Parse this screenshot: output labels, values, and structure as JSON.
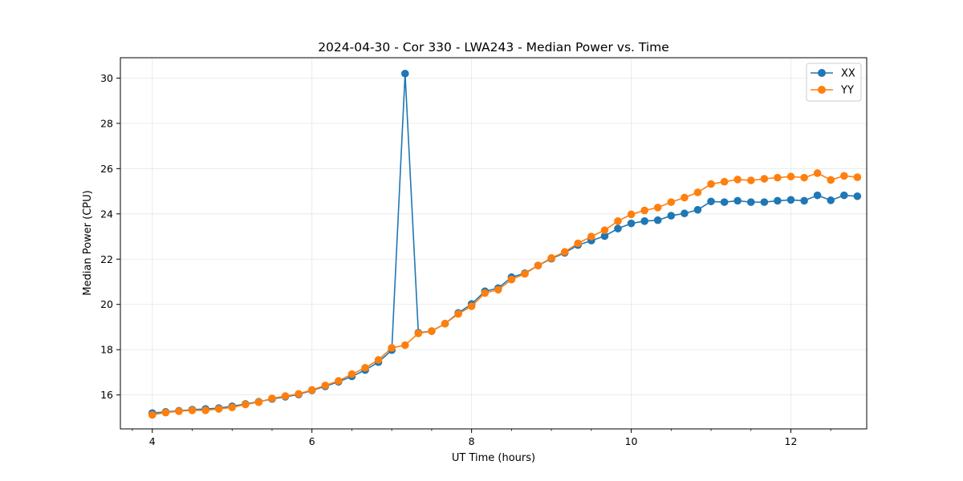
{
  "chart_data": {
    "type": "line",
    "title": "2024-04-30 - Cor 330 - LWA243 - Median Power vs. Time",
    "xlabel": "UT Time (hours)",
    "ylabel": "Median Power (CPU)",
    "xlim": [
      3.6,
      12.95
    ],
    "ylim": [
      14.5,
      30.9
    ],
    "xticks": [
      4,
      6,
      8,
      10,
      12
    ],
    "xtick_labels": [
      "4",
      "6",
      "8",
      "10",
      "12"
    ],
    "xminor": [
      3.75,
      4.5,
      5.0,
      5.5,
      6.5,
      7.0,
      7.5,
      8.5,
      9.0,
      9.5,
      10.5,
      11.0,
      11.5,
      12.5
    ],
    "yticks": [
      16,
      18,
      20,
      22,
      24,
      26,
      28,
      30
    ],
    "ytick_labels": [
      "16",
      "18",
      "20",
      "22",
      "24",
      "26",
      "28",
      "30"
    ],
    "grid": true,
    "legend_position": "top-right",
    "x": [
      4.0,
      4.167,
      4.333,
      4.5,
      4.667,
      4.833,
      5.0,
      5.167,
      5.333,
      5.5,
      5.667,
      5.833,
      6.0,
      6.167,
      6.333,
      6.5,
      6.667,
      6.833,
      7.0,
      7.167,
      7.333,
      7.5,
      7.667,
      7.833,
      8.0,
      8.167,
      8.333,
      8.5,
      8.667,
      8.833,
      9.0,
      9.167,
      9.333,
      9.5,
      9.667,
      9.833,
      10.0,
      10.167,
      10.333,
      10.5,
      10.667,
      10.833,
      11.0,
      11.167,
      11.333,
      11.5,
      11.667,
      11.833,
      12.0,
      12.167,
      12.333,
      12.5,
      12.667,
      12.833
    ],
    "series": [
      {
        "name": "XX",
        "color": "#1f77b4",
        "values": [
          15.2,
          15.25,
          15.3,
          15.35,
          15.38,
          15.42,
          15.5,
          15.6,
          15.7,
          15.82,
          15.92,
          16.02,
          16.2,
          16.38,
          16.58,
          16.82,
          17.1,
          17.45,
          17.98,
          30.2,
          18.75,
          18.82,
          19.15,
          19.62,
          20.02,
          20.58,
          20.72,
          21.2,
          21.38,
          21.72,
          22.02,
          22.28,
          22.62,
          22.82,
          23.02,
          23.35,
          23.58,
          23.68,
          23.72,
          23.92,
          24.02,
          24.18,
          24.55,
          24.52,
          24.58,
          24.52,
          24.52,
          24.58,
          24.62,
          24.58,
          24.82,
          24.6,
          24.82,
          24.78
        ]
      },
      {
        "name": "YY",
        "color": "#ff7f0e",
        "values": [
          15.12,
          15.22,
          15.28,
          15.32,
          15.32,
          15.38,
          15.45,
          15.58,
          15.68,
          15.85,
          15.95,
          16.05,
          16.22,
          16.42,
          16.62,
          16.92,
          17.2,
          17.55,
          18.08,
          18.2,
          18.72,
          18.82,
          19.15,
          19.58,
          19.92,
          20.5,
          20.65,
          21.1,
          21.35,
          21.72,
          22.05,
          22.32,
          22.7,
          23.0,
          23.28,
          23.68,
          23.98,
          24.15,
          24.28,
          24.52,
          24.72,
          24.95,
          25.32,
          25.42,
          25.52,
          25.48,
          25.55,
          25.6,
          25.65,
          25.6,
          25.8,
          25.5,
          25.68,
          25.62
        ]
      }
    ]
  }
}
